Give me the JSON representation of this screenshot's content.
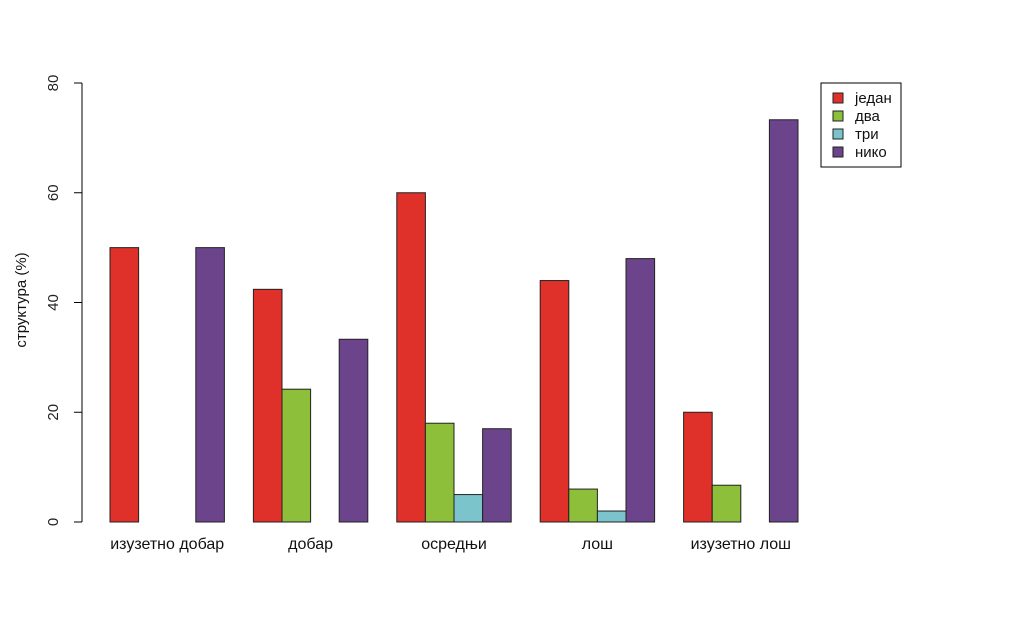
{
  "chart_data": {
    "type": "bar",
    "ylabel": "структура (%)",
    "ylim": [
      0,
      80
    ],
    "yticks": [
      0,
      20,
      40,
      60,
      80
    ],
    "categories": [
      "изузетно добар",
      "добар",
      "осредњи",
      "лош",
      "изузетно лош"
    ],
    "series": [
      {
        "name": "један",
        "color": "#e0302a",
        "values": [
          50,
          42.4,
          60,
          44,
          20
        ]
      },
      {
        "name": "два",
        "color": "#8dbf3a",
        "values": [
          0,
          24.2,
          18,
          6,
          6.7
        ]
      },
      {
        "name": "три",
        "color": "#7cc4cc",
        "values": [
          0,
          0,
          5,
          2,
          0
        ]
      },
      {
        "name": "нико",
        "color": "#6c448c",
        "values": [
          50,
          33.3,
          17,
          48,
          73.3
        ]
      }
    ],
    "legend_position": "top-right",
    "grid": false
  }
}
